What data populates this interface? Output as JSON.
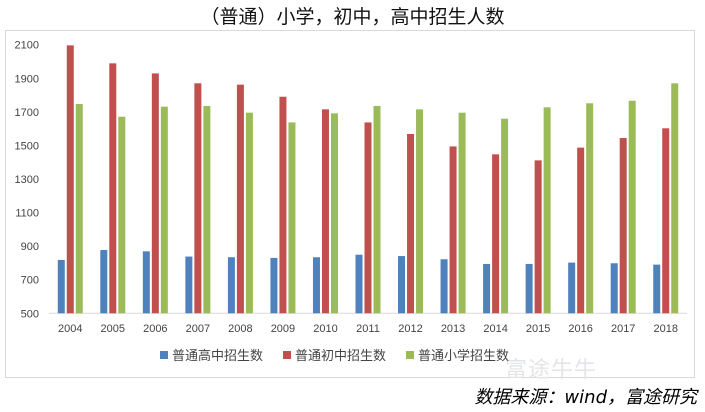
{
  "title": "（普通）小学，初中，高中招生人数",
  "source": "数据来源：wind，富途研究",
  "watermark": "富途牛牛",
  "chart_data": {
    "type": "bar",
    "title": "（普通）小学，初中，高中招生人数",
    "categories": [
      "2004",
      "2005",
      "2006",
      "2007",
      "2008",
      "2009",
      "2010",
      "2011",
      "2012",
      "2013",
      "2014",
      "2015",
      "2016",
      "2017",
      "2018"
    ],
    "ylim": [
      500,
      2100
    ],
    "yticks": [
      500,
      700,
      900,
      1100,
      1300,
      1500,
      1700,
      1900,
      2100
    ],
    "grid": false,
    "legend_position": "bottom",
    "series": [
      {
        "name": "普通高中招生数",
        "color": "#4f81bd",
        "values": [
          818,
          877,
          869,
          838,
          834,
          830,
          834,
          849,
          841,
          822,
          794,
          794,
          802,
          798,
          790
        ]
      },
      {
        "name": "普通初中招生数",
        "color": "#c0504d",
        "values": [
          2096,
          1989,
          1929,
          1870,
          1862,
          1790,
          1715,
          1637,
          1568,
          1494,
          1447,
          1411,
          1487,
          1544,
          1602
        ]
      },
      {
        "name": "普通小学招生数",
        "color": "#9bbb59",
        "values": [
          1747,
          1671,
          1731,
          1735,
          1695,
          1637,
          1691,
          1735,
          1715,
          1695,
          1659,
          1727,
          1751,
          1766,
          1870
        ]
      }
    ]
  }
}
